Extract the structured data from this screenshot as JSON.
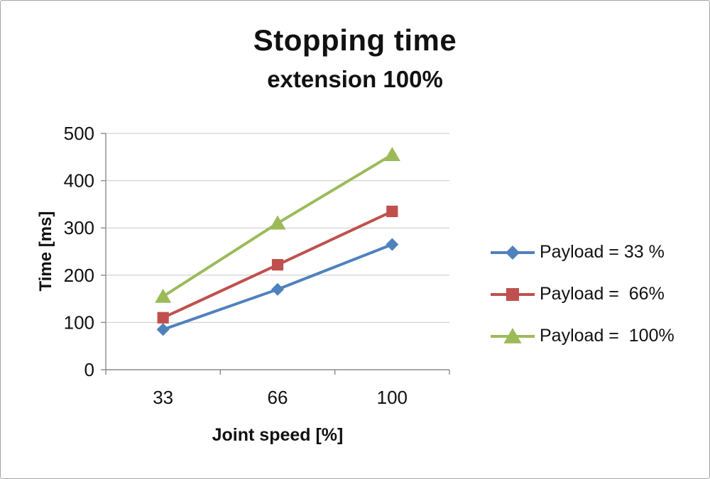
{
  "chart_data": {
    "type": "line",
    "title": "Stopping time",
    "subtitle": "extension 100%",
    "xlabel": "Joint speed [%]",
    "ylabel": "Time [ms]",
    "categories": [
      "33",
      "66",
      "100"
    ],
    "y_ticks": [
      0,
      100,
      200,
      300,
      400,
      500
    ],
    "ylim": [
      0,
      500
    ],
    "grid": true,
    "legend_position": "right",
    "axis_color": "#8c8c8c",
    "gridline_color": "#c9c9c9",
    "series": [
      {
        "name": "Payload = 33 %",
        "marker": "diamond",
        "color": "#4F81BD",
        "values": [
          85,
          170,
          265
        ]
      },
      {
        "name": "Payload =  66%",
        "marker": "square",
        "color": "#C0504D",
        "values": [
          110,
          222,
          335
        ]
      },
      {
        "name": "Payload =  100%",
        "marker": "triangle",
        "color": "#9BBB59",
        "values": [
          155,
          310,
          455
        ]
      }
    ]
  }
}
